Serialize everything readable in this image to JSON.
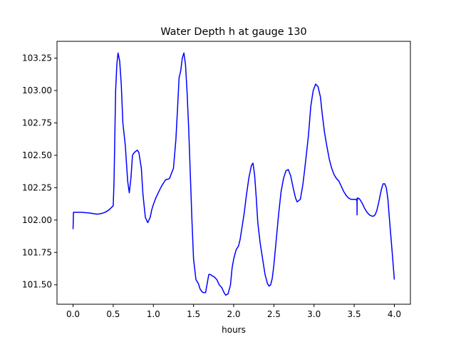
{
  "chart_data": {
    "type": "line",
    "title": "Water Depth h at gauge 130",
    "xlabel": "hours",
    "ylabel": "",
    "xlim": [
      -0.2,
      4.2
    ],
    "ylim": [
      101.35,
      103.38
    ],
    "x_ticks": [
      0.0,
      0.5,
      1.0,
      1.5,
      2.0,
      2.5,
      3.0,
      3.5,
      4.0
    ],
    "x_tick_labels": [
      "0.0",
      "0.5",
      "1.0",
      "1.5",
      "2.0",
      "2.5",
      "3.0",
      "3.5",
      "4.0"
    ],
    "y_ticks": [
      101.5,
      101.75,
      102.0,
      102.25,
      102.5,
      102.75,
      103.0,
      103.25
    ],
    "y_tick_labels": [
      "101.50",
      "101.75",
      "102.00",
      "102.25",
      "102.50",
      "102.75",
      "103.00",
      "103.25"
    ],
    "grid": false,
    "line_color": "#0000ff",
    "series": [
      {
        "x": [
          0.0,
          0.005,
          0.01,
          0.1,
          0.2,
          0.25,
          0.3,
          0.35,
          0.4,
          0.45,
          0.5,
          0.51,
          0.53,
          0.545,
          0.56,
          0.58,
          0.6,
          0.62,
          0.65,
          0.68,
          0.7,
          0.72,
          0.74,
          0.76,
          0.78,
          0.8,
          0.82,
          0.85,
          0.87,
          0.9,
          0.93,
          0.96,
          0.98,
          1.0,
          1.03,
          1.06,
          1.1,
          1.15,
          1.2,
          1.25,
          1.28,
          1.3,
          1.32,
          1.34,
          1.36,
          1.38,
          1.4,
          1.42,
          1.44,
          1.46,
          1.48,
          1.5,
          1.53,
          1.56,
          1.58,
          1.6,
          1.62,
          1.65,
          1.67,
          1.69,
          1.71,
          1.73,
          1.76,
          1.79,
          1.82,
          1.85,
          1.88,
          1.9,
          1.93,
          1.96,
          1.98,
          2.0,
          2.03,
          2.06,
          2.08,
          2.1,
          2.13,
          2.16,
          2.19,
          2.22,
          2.24,
          2.26,
          2.28,
          2.3,
          2.33,
          2.36,
          2.39,
          2.42,
          2.44,
          2.46,
          2.48,
          2.5,
          2.53,
          2.56,
          2.59,
          2.62,
          2.65,
          2.68,
          2.71,
          2.74,
          2.77,
          2.79,
          2.81,
          2.83,
          2.86,
          2.88,
          2.9,
          2.93,
          2.96,
          2.99,
          3.02,
          3.05,
          3.08,
          3.1,
          3.13,
          3.16,
          3.19,
          3.22,
          3.25,
          3.28,
          3.31,
          3.34,
          3.37,
          3.4,
          3.43,
          3.46,
          3.5,
          3.52,
          3.535,
          3.536,
          3.537,
          3.538,
          3.55,
          3.57,
          3.6,
          3.63,
          3.66,
          3.69,
          3.72,
          3.74,
          3.76,
          3.78,
          3.8,
          3.82,
          3.84,
          3.86,
          3.88,
          3.9,
          3.92,
          3.94,
          3.96,
          3.98,
          4.0
        ],
        "y": [
          101.93,
          102.06,
          102.06,
          102.06,
          102.055,
          102.05,
          102.045,
          102.05,
          102.06,
          102.08,
          102.11,
          102.3,
          103.0,
          103.2,
          103.29,
          103.23,
          103.05,
          102.75,
          102.58,
          102.3,
          102.21,
          102.32,
          102.5,
          102.52,
          102.53,
          102.54,
          102.52,
          102.4,
          102.2,
          102.02,
          101.98,
          102.02,
          102.08,
          102.12,
          102.17,
          102.21,
          102.26,
          102.31,
          102.32,
          102.4,
          102.62,
          102.85,
          103.1,
          103.15,
          103.25,
          103.29,
          103.2,
          102.98,
          102.7,
          102.35,
          102.0,
          101.7,
          101.54,
          101.51,
          101.47,
          101.45,
          101.44,
          101.44,
          101.51,
          101.58,
          101.58,
          101.57,
          101.56,
          101.54,
          101.5,
          101.48,
          101.44,
          101.42,
          101.43,
          101.5,
          101.63,
          101.7,
          101.77,
          101.8,
          101.85,
          101.93,
          102.05,
          102.2,
          102.33,
          102.42,
          102.44,
          102.35,
          102.18,
          101.98,
          101.82,
          101.7,
          101.58,
          101.51,
          101.49,
          101.5,
          101.55,
          101.65,
          101.85,
          102.05,
          102.22,
          102.32,
          102.38,
          102.39,
          102.34,
          102.25,
          102.17,
          102.14,
          102.15,
          102.16,
          102.27,
          102.37,
          102.48,
          102.65,
          102.88,
          103.0,
          103.05,
          103.03,
          102.95,
          102.83,
          102.68,
          102.57,
          102.47,
          102.4,
          102.35,
          102.32,
          102.3,
          102.26,
          102.22,
          102.19,
          102.17,
          102.16,
          102.16,
          102.16,
          102.15,
          102.04,
          102.17,
          102.16,
          102.17,
          102.16,
          102.13,
          102.09,
          102.06,
          102.04,
          102.03,
          102.03,
          102.04,
          102.07,
          102.12,
          102.18,
          102.24,
          102.28,
          102.28,
          102.25,
          102.16,
          102.0,
          101.85,
          101.7,
          101.54
        ]
      }
    ]
  }
}
